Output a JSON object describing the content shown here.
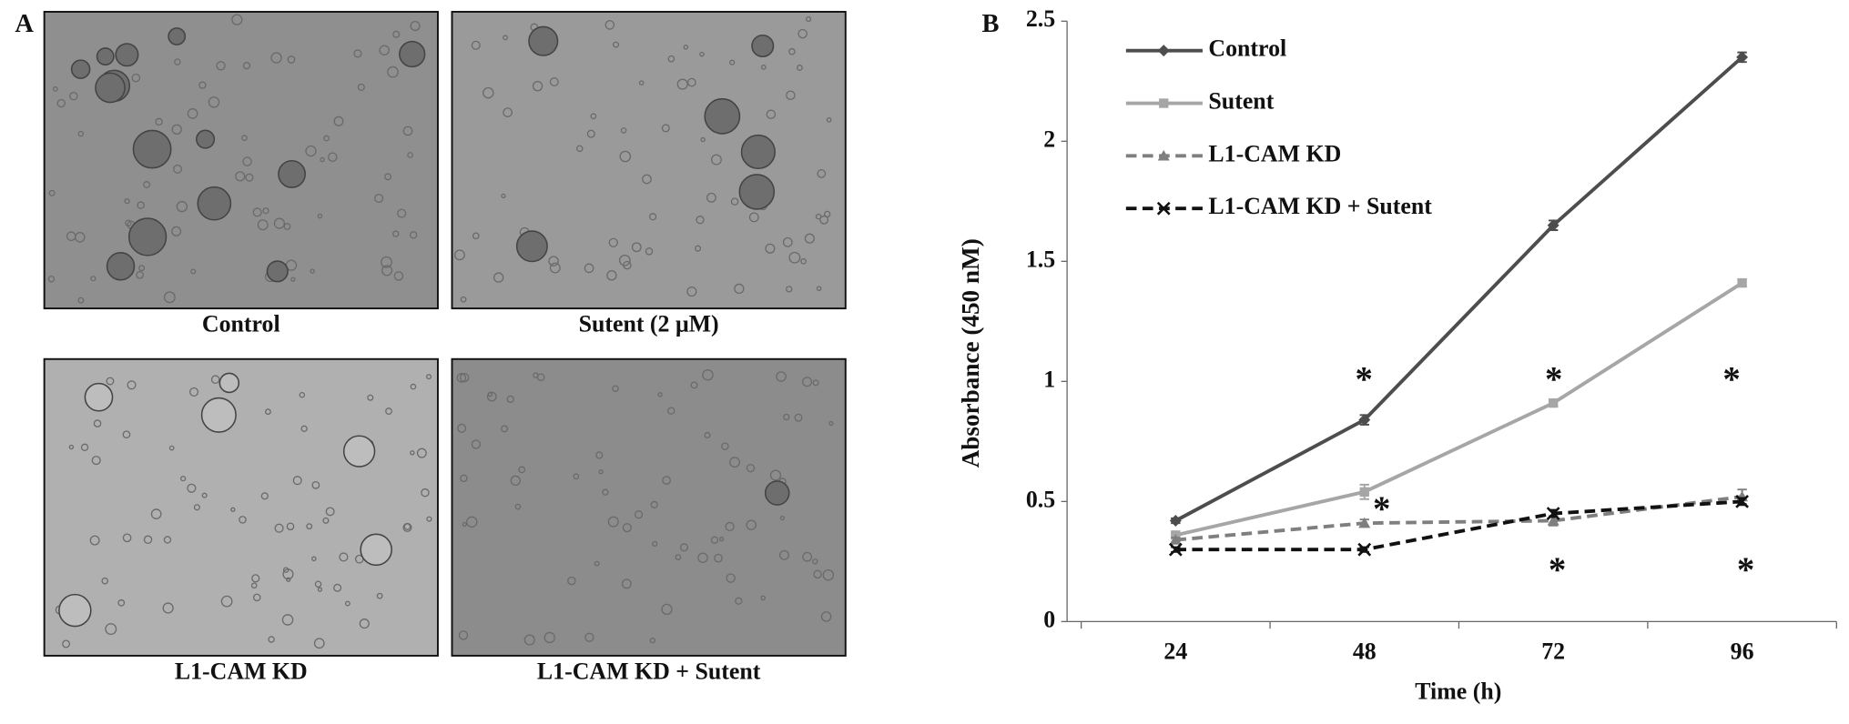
{
  "panel_a": {
    "label": "A",
    "captions": [
      "Control",
      "Sutent (2 μM)",
      "L1-CAM KD",
      "L1-CAM KD + Sutent"
    ]
  },
  "chart_data": {
    "type": "line",
    "panel_label": "B",
    "xlabel": "Time (h)",
    "ylabel": "Absorbance (450 nM)",
    "categories": [
      24,
      48,
      72,
      96
    ],
    "ylim": [
      0,
      2.5
    ],
    "yticks": [
      0,
      0.5,
      1,
      1.5,
      2,
      2.5
    ],
    "series": [
      {
        "name": "Control",
        "color": "#4d4d4d",
        "marker": "diamond",
        "dashed": false,
        "values": [
          0.42,
          0.84,
          1.65,
          2.35
        ],
        "errors": [
          0.01,
          0.02,
          0.02,
          0.02
        ]
      },
      {
        "name": "Sutent",
        "color": "#a6a6a6",
        "marker": "square",
        "dashed": false,
        "values": [
          0.36,
          0.54,
          0.91,
          1.41
        ],
        "errors": [
          0.01,
          0.03,
          0.015,
          0.015
        ]
      },
      {
        "name": "L1-CAM KD",
        "color": "#7f7f7f",
        "marker": "triangle",
        "dashed": true,
        "values": [
          0.34,
          0.41,
          0.42,
          0.52
        ],
        "errors": [
          0.01,
          0.015,
          0.02,
          0.03
        ]
      },
      {
        "name": "L1-CAM KD + Sutent",
        "color": "#111111",
        "marker": "x",
        "dashed": true,
        "values": [
          0.3,
          0.3,
          0.45,
          0.5
        ],
        "errors": [
          0.01,
          0.01,
          0.015,
          0.015
        ]
      }
    ],
    "annotations": [
      "*",
      "*",
      "*",
      "*",
      "*",
      "*"
    ]
  }
}
